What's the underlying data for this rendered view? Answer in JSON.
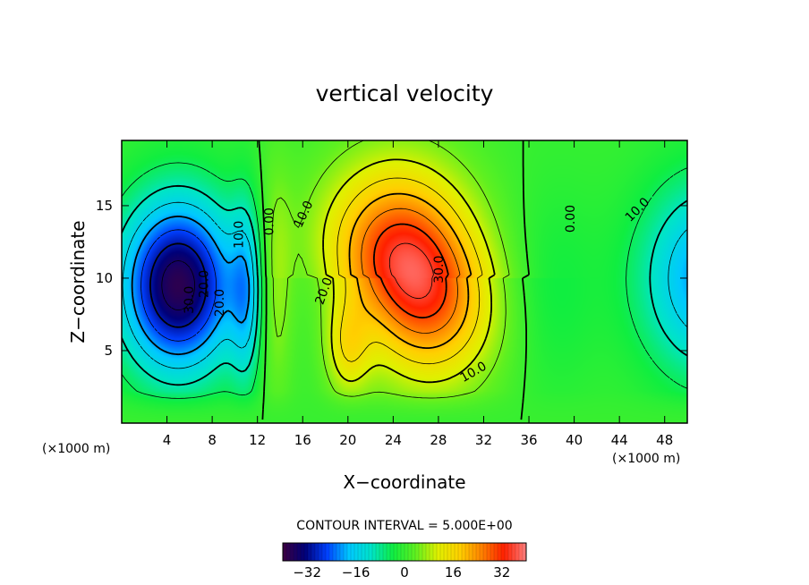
{
  "chart_data": {
    "type": "heatmap",
    "title": "vertical velocity",
    "xlabel": "X−coordinate",
    "ylabel": "Z−coordinate",
    "x_unit_left": "(×1000 m)",
    "x_unit_right": "(×1000 m)",
    "xlim": [
      0,
      50
    ],
    "ylim": [
      0,
      19.5
    ],
    "x_ticks": [
      {
        "value": 4,
        "label": "4"
      },
      {
        "value": 8,
        "label": "8"
      },
      {
        "value": 12,
        "label": "12"
      },
      {
        "value": 16,
        "label": "16"
      },
      {
        "value": 20,
        "label": "20"
      },
      {
        "value": 24,
        "label": "24"
      },
      {
        "value": 28,
        "label": "28"
      },
      {
        "value": 32,
        "label": "32"
      },
      {
        "value": 36,
        "label": "36"
      },
      {
        "value": 40,
        "label": "40"
      },
      {
        "value": 44,
        "label": "44"
      },
      {
        "value": 48,
        "label": "48"
      }
    ],
    "y_ticks": [
      {
        "value": 5,
        "label": "5"
      },
      {
        "value": 10,
        "label": "10"
      },
      {
        "value": 15,
        "label": "15"
      }
    ],
    "contour_interval_text": "CONTOUR INTERVAL = 5.000E+00",
    "contour_interval": 5,
    "field_features": [
      {
        "type": "downdraft",
        "x": 5,
        "z": 9.5,
        "value": -38
      },
      {
        "type": "updraft",
        "x": 26,
        "z": 10.5,
        "value": 38
      },
      {
        "type": "downdraft",
        "x": 52,
        "z": 10,
        "value": -22
      },
      {
        "type": "downdraft",
        "x": 11,
        "z": 9,
        "value": -13
      },
      {
        "type": "updraft",
        "x": 13.5,
        "z": 9,
        "value": 8
      }
    ],
    "contour_labels": [
      {
        "text": "30.0",
        "x": 6,
        "z": 8.5,
        "angle": -90
      },
      {
        "text": "20.0",
        "x": 7.3,
        "z": 9.6,
        "angle": -90
      },
      {
        "text": "20.0",
        "x": 8.7,
        "z": 8.3,
        "angle": -90
      },
      {
        "text": "10.0",
        "x": 10.4,
        "z": 13,
        "angle": -90
      },
      {
        "text": "0.00",
        "x": 13.1,
        "z": 13.9,
        "angle": -90
      },
      {
        "text": "10.0",
        "x": 16.1,
        "z": 14.4,
        "angle": -65
      },
      {
        "text": "20.0",
        "x": 17.9,
        "z": 9.1,
        "angle": -70
      },
      {
        "text": "30.0",
        "x": 28.1,
        "z": 10.6,
        "angle": -90
      },
      {
        "text": "10.0",
        "x": 31.1,
        "z": 3.5,
        "angle": -30
      },
      {
        "text": "0.00",
        "x": 39.7,
        "z": 14.1,
        "angle": -90
      },
      {
        "text": "10.0",
        "x": 45.6,
        "z": 14.7,
        "angle": -45
      }
    ],
    "colorbar": {
      "range": [
        -40,
        40
      ],
      "ticks": [
        {
          "value": -32,
          "label": "−32"
        },
        {
          "value": -16,
          "label": "−16"
        },
        {
          "value": 0,
          "label": "0"
        },
        {
          "value": 16,
          "label": "16"
        },
        {
          "value": 32,
          "label": "32"
        }
      ]
    }
  },
  "colors": {
    "palette": [
      "#3c0040",
      "#000078",
      "#0040ff",
      "#00c8ff",
      "#00e4c8",
      "#10ee40",
      "#60f020",
      "#e0f000",
      "#ffd000",
      "#ff8000",
      "#ff2000",
      "#ff8080"
    ]
  }
}
